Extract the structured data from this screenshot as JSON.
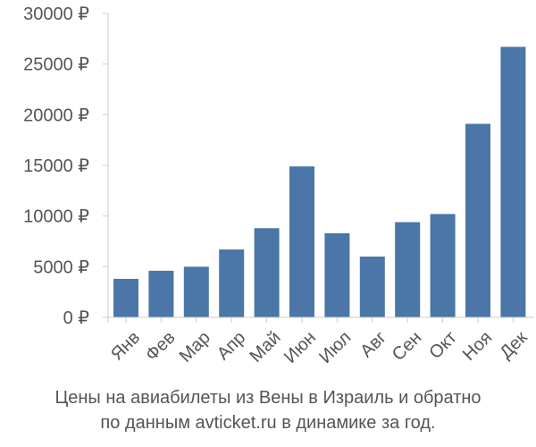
{
  "chart_data": {
    "type": "bar",
    "categories": [
      "Янв",
      "Фев",
      "Мар",
      "Апр",
      "Май",
      "Июн",
      "Июл",
      "Авг",
      "Сен",
      "Окт",
      "Ноя",
      "Дек"
    ],
    "values": [
      3800,
      4600,
      5000,
      6700,
      8800,
      14900,
      8300,
      6000,
      9400,
      10200,
      19100,
      26700
    ],
    "ylim": [
      0,
      30000
    ],
    "yticks": [
      0,
      5000,
      10000,
      15000,
      20000,
      25000,
      30000
    ],
    "ytick_labels": [
      "0 ₽",
      "5000 ₽",
      "10000 ₽",
      "15000 ₽",
      "20000 ₽",
      "25000 ₽",
      "30000 ₽"
    ],
    "bar_color": "#4a76a8",
    "grid": false,
    "caption_line1": "Цены на авиабилеты из Вены в Израиль и обратно",
    "caption_line2": "по данным avticket.ru в динамике за год."
  }
}
